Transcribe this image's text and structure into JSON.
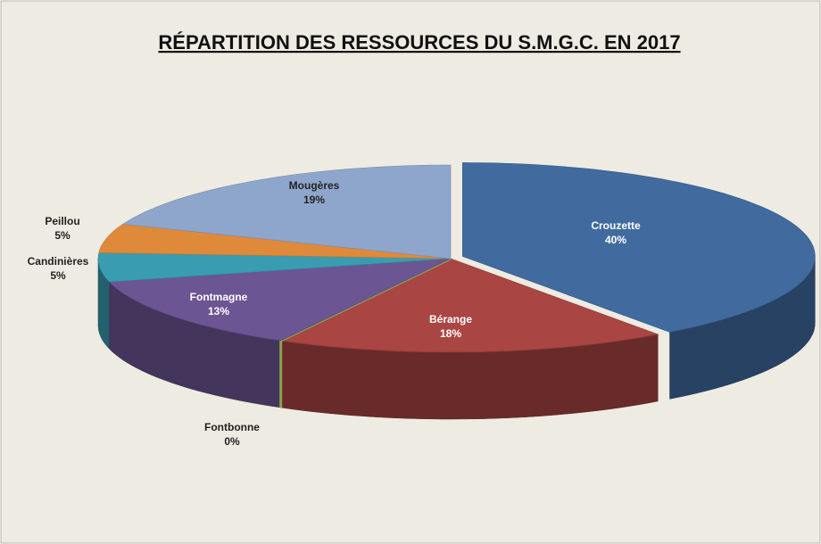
{
  "chart_data": {
    "type": "pie",
    "title": "RÉPARTITION DES RESSOURCES DU S.M.G.C. EN 2017",
    "categories": [
      "Crouzette",
      "Bérange",
      "Fontbonne",
      "Fontmagne",
      "Candinières",
      "Peillou",
      "Mougères"
    ],
    "values": [
      40,
      18,
      0,
      13,
      5,
      5,
      19
    ],
    "value_labels": [
      "40%",
      "18%",
      "0%",
      "13%",
      "5%",
      "5%",
      "19%"
    ],
    "colors": [
      "#416b9f",
      "#a94542",
      "#8aa156",
      "#6c5593",
      "#3a9cb1",
      "#df8a3a",
      "#8fa6cc"
    ]
  }
}
